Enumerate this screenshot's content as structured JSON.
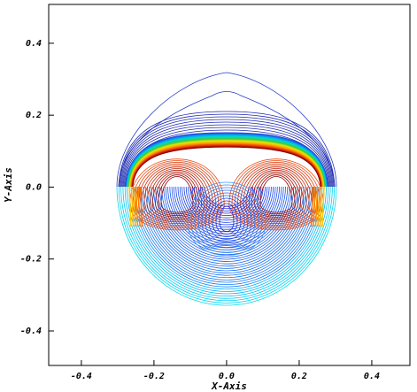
{
  "chart_data": {
    "type": "contour",
    "xlabel": "X-Axis",
    "ylabel": "Y-Axis",
    "xlim": [
      -0.49,
      0.505
    ],
    "ylim": [
      -0.496,
      0.508
    ],
    "xticks": [
      -0.4,
      -0.2,
      {
        "value": 0,
        "label": "0.0"
      },
      0.2,
      0.4
    ],
    "yticks": [
      -0.4,
      -0.2,
      {
        "value": 0,
        "label": "0.0"
      },
      0.2,
      0.4
    ]
  }
}
